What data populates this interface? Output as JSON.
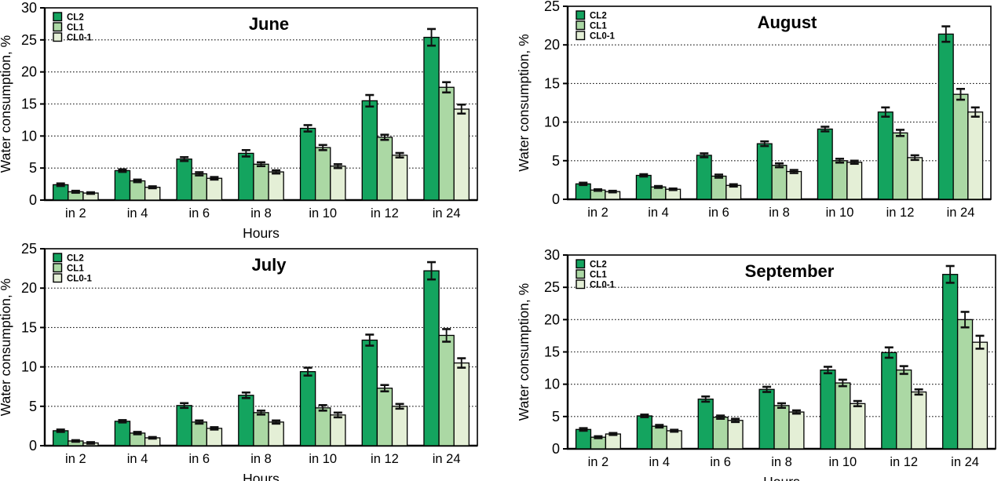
{
  "page": {
    "background": "#ffffff",
    "text_color": "#000000"
  },
  "legend": {
    "items": [
      "CL2",
      "CL1",
      "CL0-1"
    ]
  },
  "series_colors": {
    "CL2": "#14a45f",
    "CL1": "#abd8a4",
    "CL0-1": "#e4efd6"
  },
  "chart_data": [
    {
      "type": "bar",
      "title": "June",
      "xlabel": "Hours",
      "ylabel": "Water consumption, %",
      "categories": [
        "in 2",
        "in 4",
        "in 6",
        "in 8",
        "in 10",
        "in 12",
        "in 24"
      ],
      "ylim": [
        0,
        30
      ],
      "ytick_step": 5,
      "grid": "dotted-horizontal",
      "legend_position": "top-left",
      "error_bars": true,
      "series": [
        {
          "name": "CL2",
          "color": "#14a45f",
          "values": [
            2.4,
            4.6,
            6.4,
            7.3,
            11.2,
            15.5,
            25.4
          ],
          "errors": [
            0.2,
            0.2,
            0.3,
            0.5,
            0.5,
            0.9,
            1.3
          ]
        },
        {
          "name": "CL1",
          "color": "#abd8a4",
          "values": [
            1.3,
            3.0,
            4.1,
            5.6,
            8.2,
            9.8,
            17.6
          ],
          "errors": [
            0.15,
            0.2,
            0.25,
            0.3,
            0.4,
            0.4,
            0.8
          ]
        },
        {
          "name": "CL0-1",
          "color": "#e4efd6",
          "values": [
            1.1,
            2.0,
            3.4,
            4.4,
            5.3,
            7.0,
            14.2
          ],
          "errors": [
            0.12,
            0.15,
            0.2,
            0.25,
            0.3,
            0.35,
            0.7
          ]
        }
      ]
    },
    {
      "type": "bar",
      "title": "August",
      "xlabel": "",
      "ylabel": "Water consumption, %",
      "categories": [
        "in 2",
        "in 4",
        "in 6",
        "in 8",
        "in 10",
        "in 12",
        "in 24"
      ],
      "ylim": [
        0,
        25
      ],
      "ytick_step": 5,
      "grid": "dotted-horizontal",
      "legend_position": "top-left",
      "error_bars": true,
      "series": [
        {
          "name": "CL2",
          "color": "#14a45f",
          "values": [
            2.0,
            3.1,
            5.7,
            7.2,
            9.1,
            11.3,
            21.4
          ],
          "errors": [
            0.15,
            0.15,
            0.25,
            0.3,
            0.3,
            0.6,
            1.0
          ]
        },
        {
          "name": "CL1",
          "color": "#abd8a4",
          "values": [
            1.2,
            1.6,
            3.0,
            4.4,
            5.0,
            8.6,
            13.6
          ],
          "errors": [
            0.1,
            0.12,
            0.2,
            0.25,
            0.25,
            0.4,
            0.7
          ]
        },
        {
          "name": "CL0-1",
          "color": "#e4efd6",
          "values": [
            1.0,
            1.3,
            1.8,
            3.6,
            4.8,
            5.4,
            11.3
          ],
          "errors": [
            0.1,
            0.1,
            0.15,
            0.2,
            0.2,
            0.3,
            0.6
          ]
        }
      ]
    },
    {
      "type": "bar",
      "title": "July",
      "xlabel": "Hours",
      "ylabel": "Water consumption, %",
      "categories": [
        "in 2",
        "in 4",
        "in 6",
        "in 8",
        "in 10",
        "in 12",
        "in 24"
      ],
      "ylim": [
        0,
        25
      ],
      "ytick_step": 5,
      "grid": "dotted-horizontal",
      "legend_position": "top-left",
      "error_bars": true,
      "series": [
        {
          "name": "CL2",
          "color": "#14a45f",
          "values": [
            1.9,
            3.1,
            5.1,
            6.4,
            9.4,
            13.4,
            22.2
          ],
          "errors": [
            0.15,
            0.15,
            0.3,
            0.35,
            0.5,
            0.7,
            1.1
          ]
        },
        {
          "name": "CL1",
          "color": "#abd8a4",
          "values": [
            0.6,
            1.6,
            3.0,
            4.2,
            4.8,
            7.3,
            14.0
          ],
          "errors": [
            0.1,
            0.15,
            0.2,
            0.25,
            0.35,
            0.4,
            0.8
          ]
        },
        {
          "name": "CL0-1",
          "color": "#e4efd6",
          "values": [
            0.35,
            1.0,
            2.2,
            3.0,
            3.9,
            5.0,
            10.5
          ],
          "errors": [
            0.1,
            0.1,
            0.15,
            0.2,
            0.3,
            0.3,
            0.6
          ]
        }
      ]
    },
    {
      "type": "bar",
      "title": "September",
      "xlabel": "Hours",
      "ylabel": "Water consumption, %",
      "categories": [
        "in 2",
        "in 4",
        "in 6",
        "in 8",
        "in 10",
        "in 12",
        "in 24"
      ],
      "ylim": [
        0,
        30
      ],
      "ytick_step": 5,
      "grid": "dotted-horizontal",
      "legend_position": "top-left",
      "error_bars": true,
      "series": [
        {
          "name": "CL2",
          "color": "#14a45f",
          "values": [
            3.0,
            5.1,
            7.7,
            9.2,
            12.2,
            14.9,
            27.0
          ],
          "errors": [
            0.2,
            0.2,
            0.4,
            0.4,
            0.5,
            0.8,
            1.3
          ]
        },
        {
          "name": "CL1",
          "color": "#abd8a4",
          "values": [
            1.8,
            3.5,
            4.9,
            6.7,
            10.2,
            12.2,
            20.0
          ],
          "errors": [
            0.15,
            0.2,
            0.25,
            0.35,
            0.5,
            0.6,
            1.2
          ]
        },
        {
          "name": "CL0-1",
          "color": "#e4efd6",
          "values": [
            2.3,
            2.8,
            4.4,
            5.7,
            7.0,
            8.8,
            16.5
          ],
          "errors": [
            0.15,
            0.15,
            0.25,
            0.25,
            0.4,
            0.4,
            1.0
          ]
        }
      ]
    }
  ]
}
